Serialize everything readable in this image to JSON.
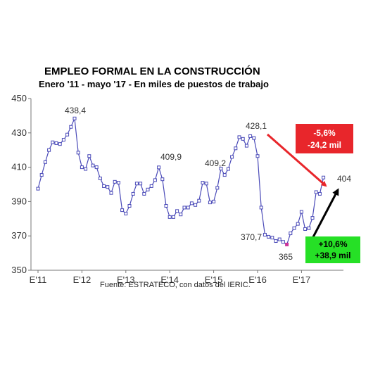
{
  "chart_data": {
    "type": "line",
    "title": "EMPLEO FORMAL EN LA CONSTRUCCIÓN",
    "subtitle": "Enero '11 - mayo '17 - En miles de puestos de trabajo",
    "source": "Fuente: ESTRATECO, con datos del IERIC.",
    "xlabel": "",
    "ylabel": "",
    "ylim": [
      350,
      450
    ],
    "yticks": [
      "350",
      "370",
      "390",
      "410",
      "430",
      "450"
    ],
    "xtick_labels": [
      "E'11",
      "E'12",
      "E'13",
      "E'14",
      "E'15",
      "E'16",
      "E'17"
    ],
    "grid": false,
    "series": [
      {
        "values": [
          397.5,
          405.5,
          413.0,
          420.0,
          424.5,
          424.0,
          423.5,
          426.0,
          429.0,
          433.5,
          438.4,
          418.5,
          410.0,
          409.0,
          416.5,
          411.0,
          410.0,
          403.5,
          399.0,
          398.5,
          395.0,
          401.5,
          401.0,
          385.0,
          383.0,
          387.5,
          394.5,
          400.5,
          400.5,
          394.5,
          397.0,
          399.0,
          402.5,
          409.9,
          403.0,
          387.5,
          381.0,
          381.0,
          384.5,
          382.5,
          386.5,
          386.5,
          389.0,
          388.0,
          390.5,
          401.0,
          400.5,
          389.5,
          390.0,
          398.0,
          409.2,
          405.5,
          409.0,
          416.0,
          421.0,
          427.5,
          426.5,
          422.5,
          428.1,
          427.0,
          416.5,
          386.5,
          370.7,
          369.5,
          369.0,
          367.0,
          368.0,
          366.5,
          365.0,
          371.5,
          374.5,
          377.0,
          384.0,
          374.0,
          374.5,
          380.5,
          395.5,
          394.5,
          404.0
        ]
      }
    ],
    "annotations": {
      "max_2011": "438,4",
      "peak_2013": "409,9",
      "peak_2014": "409,2",
      "peak_2015": "428,1",
      "low_2016_start": "370,7",
      "low_2016_min": "365",
      "last_value": "404"
    },
    "down_box": {
      "line1": "-5,6%",
      "line2": "-24,2 mil",
      "color": "#e8262b"
    },
    "up_box": {
      "line1": "+10,6%",
      "line2": "+38,9 mil",
      "color": "#26e026"
    },
    "series_color": "#4a4ab8",
    "highlight_color": "#cc3399"
  }
}
